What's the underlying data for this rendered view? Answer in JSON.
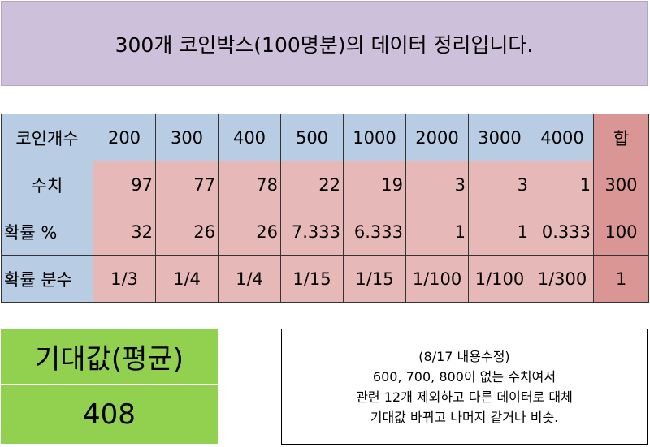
{
  "banner": {
    "title": "300개 코인박스(100명분)의 데이터 정리입니다."
  },
  "table": {
    "header": [
      "코인개수",
      "200",
      "300",
      "400",
      "500",
      "1000",
      "2000",
      "3000",
      "4000",
      "합"
    ],
    "rows": [
      {
        "label": "수치",
        "cells": [
          "97",
          "77",
          "78",
          "22",
          "19",
          "3",
          "3",
          "1"
        ],
        "total": "300"
      },
      {
        "label": "확률 %",
        "cells": [
          "32",
          "26",
          "26",
          "7.333",
          "6.333",
          "1",
          "1",
          "0.333"
        ],
        "total": "100"
      },
      {
        "label": "확률 분수",
        "cells": [
          "1/3",
          "1/4",
          "1/4",
          "1/15",
          "1/15",
          "1/100",
          "1/100",
          "1/300"
        ],
        "total": "1"
      }
    ]
  },
  "expected_value": {
    "label": "기대값(평균)",
    "value": "408"
  },
  "note": {
    "lines": [
      "(8/17 내용수정)",
      "600, 700, 800이 없는 수치여서",
      "관련 12개 제외하고 다른 데이터로 대체",
      "기대값 바뀌고 나머지 같거나 비슷."
    ]
  },
  "colors": {
    "banner": "#ccc0da",
    "header_cells": "#b8cce4",
    "value_cells": "#e6b9b8",
    "total_cells": "#da9694",
    "expected_value_box": "#92d050"
  }
}
